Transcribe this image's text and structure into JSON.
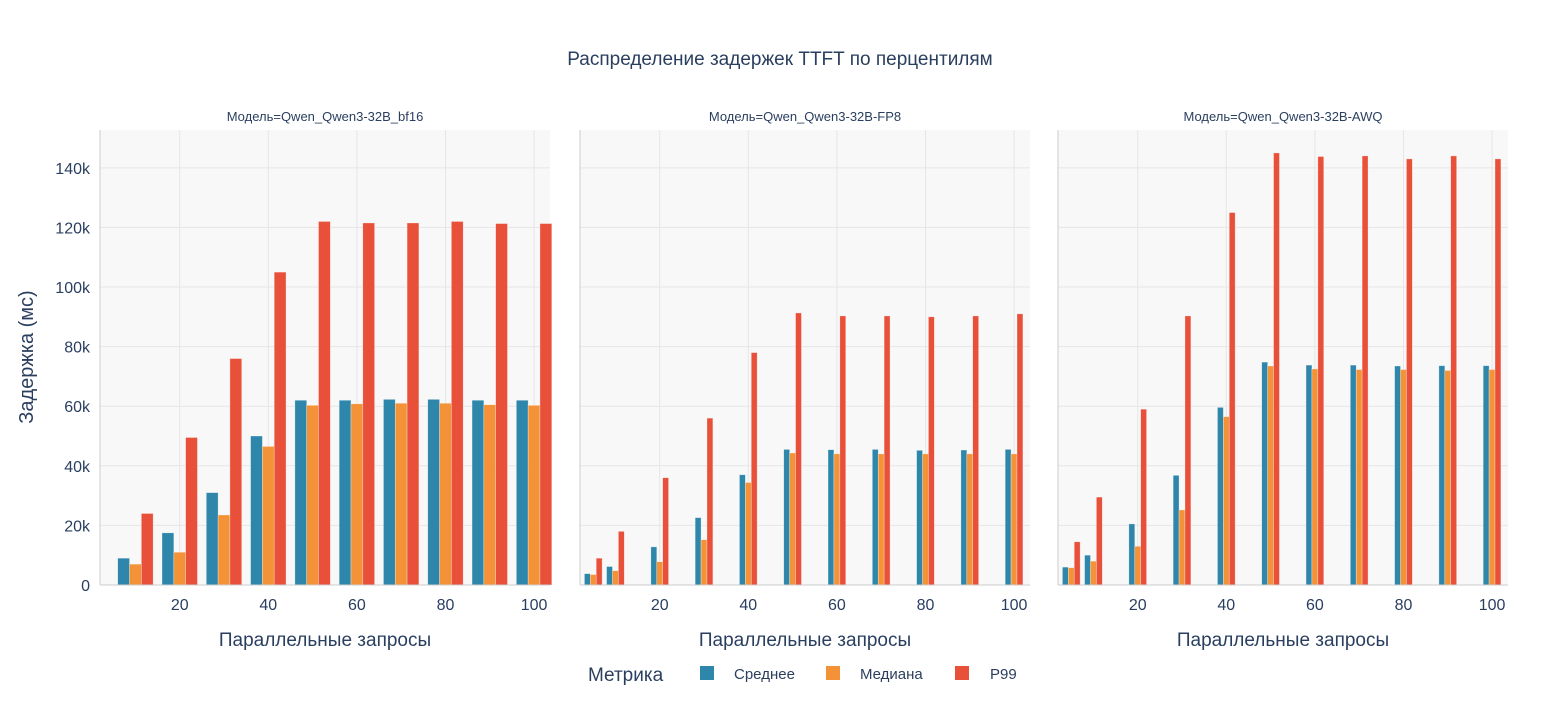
{
  "chart_data": {
    "type": "bar",
    "title": "Распределение задержек TTFT по перцентилям",
    "ylabel": "Задержка (мс)",
    "xlabel": "Параллельные запросы",
    "ylim": [
      0,
      152700
    ],
    "xlim": [
      2,
      103.6
    ],
    "yticks": [
      0,
      20000,
      40000,
      60000,
      80000,
      100000,
      120000,
      140000
    ],
    "ytick_labels": [
      "0",
      "20k",
      "40k",
      "60k",
      "80k",
      "100k",
      "120k",
      "140k"
    ],
    "xticks": [
      20,
      40,
      60,
      80,
      100
    ],
    "xtick_labels": [
      "20",
      "40",
      "60",
      "80",
      "100"
    ],
    "grid": true,
    "legend": {
      "title": "Метрика",
      "placement": "bottom",
      "items": [
        "Среднее",
        "Медиана",
        "P99"
      ]
    },
    "colors": {
      "Среднее": "#2e86ab",
      "Медиана": "#f39237",
      "P99": "#e8503a"
    },
    "facets": [
      {
        "title": "Модель=Qwen_Qwen3-32B_bf16",
        "x": [
          10,
          20,
          30,
          40,
          50,
          60,
          70,
          80,
          90,
          100
        ],
        "series": [
          {
            "name": "Среднее",
            "values": [
              9000,
              17500,
              31000,
              50000,
              62000,
              62000,
              62300,
              62300,
              62000,
              62000
            ]
          },
          {
            "name": "Медиана",
            "values": [
              7000,
              11000,
              23500,
              46500,
              60300,
              60800,
              61000,
              61000,
              60500,
              60300
            ]
          },
          {
            "name": "P99",
            "values": [
              24000,
              49500,
              76000,
              105000,
              122000,
              121500,
              121500,
              122000,
              121300,
              121300
            ]
          }
        ]
      },
      {
        "title": "Модель=Qwen_Qwen3-32B-FP8",
        "x": [
          5,
          10,
          20,
          30,
          40,
          50,
          60,
          70,
          80,
          90,
          100
        ],
        "series": [
          {
            "name": "Среднее",
            "values": [
              3800,
              6200,
              12800,
              22600,
              37000,
              45500,
              45400,
              45500,
              45200,
              45300,
              45500
            ]
          },
          {
            "name": "Медиана",
            "values": [
              3500,
              4800,
              7800,
              15200,
              34400,
              44300,
              44000,
              44000,
              44000,
              44000,
              44000
            ]
          },
          {
            "name": "P99",
            "values": [
              9000,
              18000,
              36000,
              56000,
              78000,
              91300,
              90300,
              90300,
              90000,
              90300,
              91000
            ]
          }
        ]
      },
      {
        "title": "Модель=Qwen_Qwen3-32B-AWQ",
        "x": [
          5,
          10,
          20,
          30,
          40,
          50,
          60,
          70,
          80,
          90,
          100
        ],
        "series": [
          {
            "name": "Среднее",
            "values": [
              6000,
              10000,
              20500,
              36800,
              59600,
              74800,
              73800,
              73800,
              73500,
              73600,
              73600
            ]
          },
          {
            "name": "Медиана",
            "values": [
              5800,
              8000,
              13000,
              25200,
              56500,
              73500,
              72500,
              72300,
              72300,
              72000,
              72300
            ]
          },
          {
            "name": "P99",
            "values": [
              14500,
              29500,
              59000,
              90300,
              125000,
              145000,
              143800,
              144000,
              143000,
              144000,
              143000
            ]
          }
        ]
      }
    ]
  }
}
